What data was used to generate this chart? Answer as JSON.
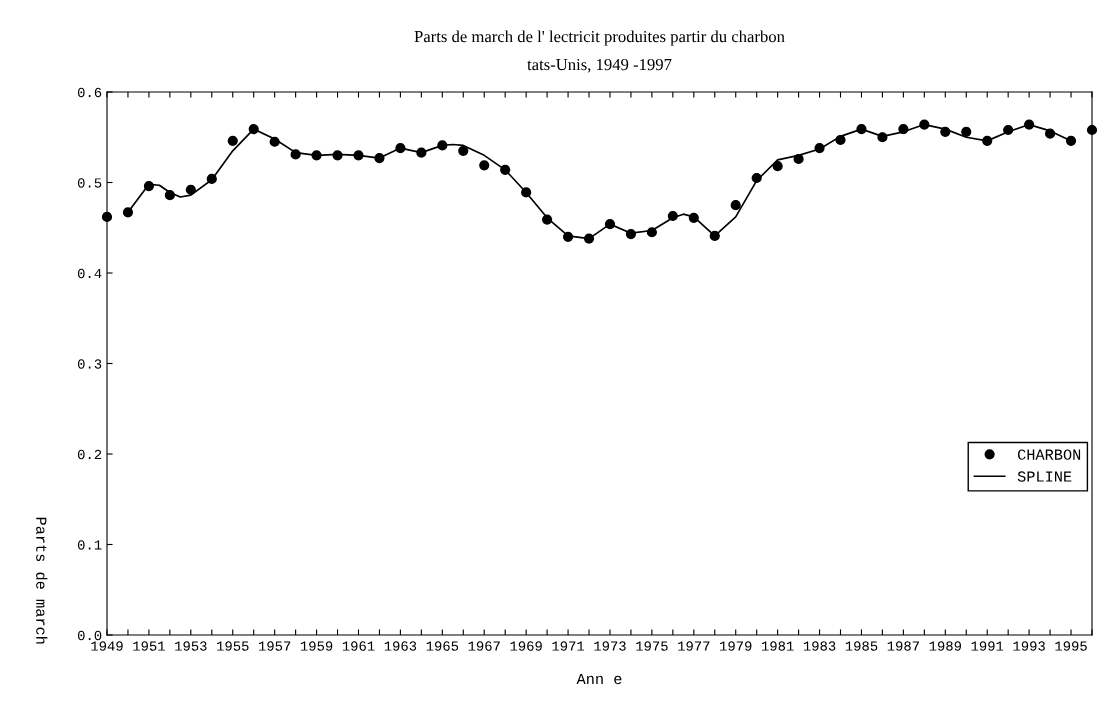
{
  "chart_data": {
    "type": "scatter",
    "title": "Parts de march de l' lectricit produites partir du charbon",
    "subtitle": "tats-Unis, 1949 -1997",
    "xlabel": "Ann e",
    "ylabel": "Parts de march",
    "x": [
      1949,
      1950,
      1951,
      1952,
      1953,
      1954,
      1955,
      1956,
      1957,
      1958,
      1959,
      1960,
      1961,
      1962,
      1963,
      1964,
      1965,
      1966,
      1967,
      1968,
      1969,
      1970,
      1971,
      1972,
      1973,
      1974,
      1975,
      1976,
      1977,
      1978,
      1979,
      1980,
      1981,
      1982,
      1983,
      1984,
      1985,
      1986,
      1987,
      1988,
      1989,
      1990,
      1991,
      1992,
      1993,
      1994,
      1995,
      1996
    ],
    "series": [
      {
        "name": "CHARBON",
        "color": "#000000",
        "marker": "circle",
        "values": [
          0.462,
          0.467,
          0.496,
          0.486,
          0.492,
          0.504,
          0.546,
          0.559,
          0.545,
          0.531,
          0.53,
          0.53,
          0.53,
          0.527,
          0.538,
          0.533,
          0.541,
          0.535,
          0.519,
          0.514,
          0.489,
          0.459,
          0.44,
          0.438,
          0.454,
          0.443,
          0.445,
          0.463,
          0.461,
          0.441,
          0.475,
          0.505,
          0.518,
          0.526,
          0.538,
          0.547,
          0.559,
          0.55,
          0.559,
          0.564,
          0.556,
          0.556,
          0.546,
          0.558,
          0.564,
          0.554,
          0.546,
          0.558
        ]
      },
      {
        "name": "SPLINE",
        "type": "line",
        "color": "#000000",
        "line_style": "solid",
        "x": [
          1950,
          1951,
          1951.5,
          1952,
          1952.5,
          1953,
          1954,
          1955,
          1956,
          1957,
          1958,
          1959,
          1960,
          1961,
          1962,
          1963,
          1964,
          1965,
          1965.5,
          1966,
          1967,
          1968,
          1969,
          1970,
          1971,
          1972,
          1973,
          1974,
          1975,
          1976,
          1976.5,
          1977,
          1978,
          1979,
          1980,
          1981,
          1982,
          1983,
          1984,
          1985,
          1986,
          1987,
          1988,
          1989,
          1990,
          1991,
          1992,
          1993,
          1994,
          1995
        ],
        "values": [
          0.467,
          0.498,
          0.497,
          0.489,
          0.484,
          0.486,
          0.503,
          0.535,
          0.559,
          0.548,
          0.533,
          0.53,
          0.531,
          0.53,
          0.527,
          0.538,
          0.533,
          0.541,
          0.542,
          0.541,
          0.53,
          0.514,
          0.489,
          0.461,
          0.441,
          0.438,
          0.454,
          0.444,
          0.447,
          0.461,
          0.465,
          0.462,
          0.441,
          0.462,
          0.502,
          0.525,
          0.53,
          0.537,
          0.551,
          0.559,
          0.551,
          0.556,
          0.564,
          0.559,
          0.55,
          0.546,
          0.556,
          0.564,
          0.557,
          0.546
        ]
      }
    ],
    "xlim": [
      1949,
      1996
    ],
    "xticks": [
      1949,
      {
        "value": 1950,
        "label": null
      },
      1951,
      {
        "value": 1952,
        "label": null
      },
      1953,
      {
        "value": 1954,
        "label": null
      },
      1955,
      {
        "value": 1956,
        "label": null
      },
      1957,
      {
        "value": 1958,
        "label": null
      },
      1959,
      {
        "value": 1960,
        "label": null
      },
      1961,
      {
        "value": 1962,
        "label": null
      },
      1963,
      {
        "value": 1964,
        "label": null
      },
      1965,
      {
        "value": 1966,
        "label": null
      },
      1967,
      {
        "value": 1968,
        "label": null
      },
      1969,
      {
        "value": 1970,
        "label": null
      },
      1971,
      {
        "value": 1972,
        "label": null
      },
      1973,
      {
        "value": 1974,
        "label": null
      },
      1975,
      {
        "value": 1976,
        "label": null
      },
      1977,
      {
        "value": 1978,
        "label": null
      },
      1979,
      {
        "value": 1980,
        "label": null
      },
      1981,
      {
        "value": 1982,
        "label": null
      },
      1983,
      {
        "value": 1984,
        "label": null
      },
      1985,
      {
        "value": 1986,
        "label": null
      },
      1987,
      {
        "value": 1988,
        "label": null
      },
      1989,
      {
        "value": 1990,
        "label": null
      },
      1991,
      {
        "value": 1992,
        "label": null
      },
      1993,
      {
        "value": 1994,
        "label": null
      },
      1995,
      {
        "value": 1996,
        "label": null
      }
    ],
    "ylim": [
      0,
      0.6
    ],
    "yticks": [
      {
        "value": 0,
        "label": "0.0"
      },
      0.1,
      0.2,
      0.3,
      0.4,
      0.5,
      0.6
    ],
    "grid": false,
    "legend": "right"
  }
}
